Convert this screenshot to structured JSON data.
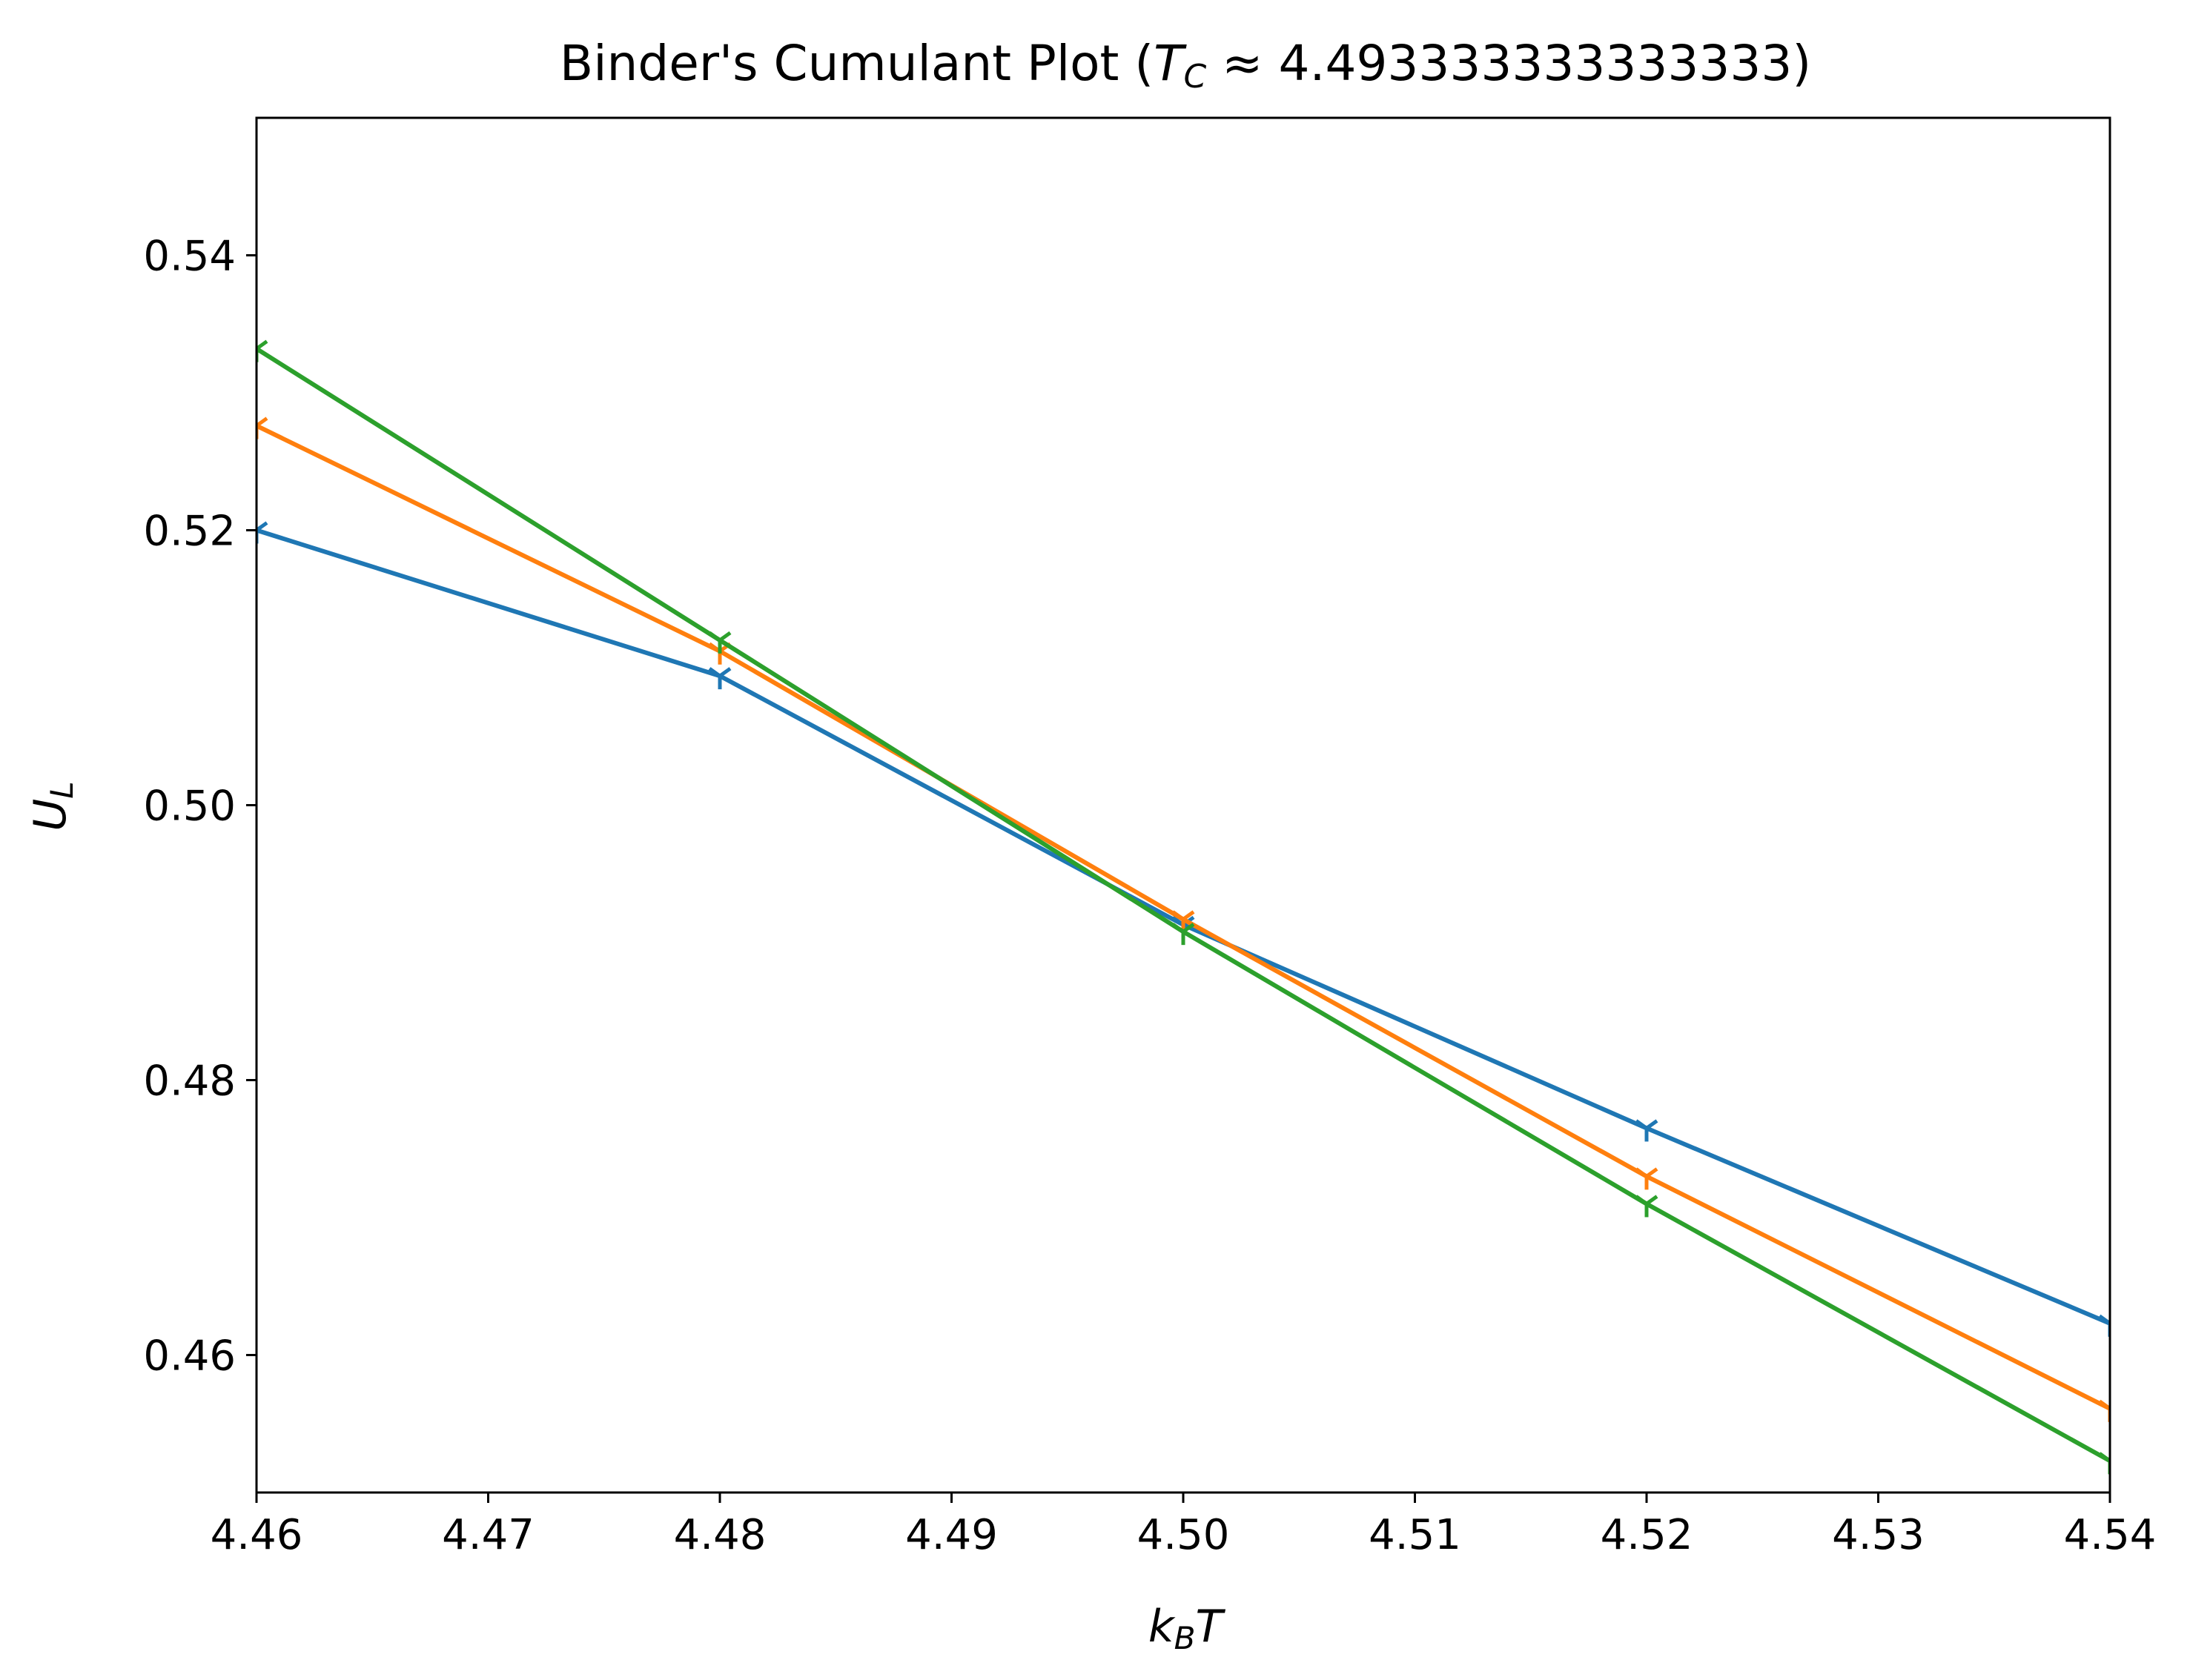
{
  "chart_data": {
    "type": "line",
    "title": "Binder's Cumulant Plot (",
    "title_tc": "T",
    "title_tc_sub": "C",
    "title_approx": " ≈ ",
    "title_value": "4.493333333333333",
    "title_close": ")",
    "xlabel": "k",
    "xlabel_sub": "B",
    "xlabel_tail": "T",
    "ylabel": "U",
    "ylabel_sub": "L",
    "xlim": [
      4.46,
      4.54
    ],
    "ylim": [
      0.45,
      0.55
    ],
    "x_ticks": [
      4.46,
      4.47,
      4.48,
      4.49,
      4.5,
      4.51,
      4.52,
      4.53,
      4.54
    ],
    "x_tick_labels": [
      "4.46",
      "4.47",
      "4.48",
      "4.49",
      "4.50",
      "4.51",
      "4.52",
      "4.53",
      "4.54"
    ],
    "y_ticks": [
      0.46,
      0.48,
      0.5,
      0.52,
      0.54
    ],
    "y_tick_labels": [
      "0.46",
      "0.48",
      "0.50",
      "0.52",
      "0.54"
    ],
    "grid": false,
    "x": [
      4.46,
      4.48,
      4.5,
      4.52,
      4.54
    ],
    "series": [
      {
        "color": "#1f77b4",
        "values": [
          0.52,
          0.5094,
          0.4913,
          0.4765,
          0.4623
        ]
      },
      {
        "color": "#ff7f0e",
        "values": [
          0.5276,
          0.5112,
          0.4917,
          0.473,
          0.4561
        ]
      },
      {
        "color": "#2ca02c",
        "values": [
          0.5332,
          0.512,
          0.4908,
          0.471,
          0.4523
        ]
      }
    ]
  }
}
